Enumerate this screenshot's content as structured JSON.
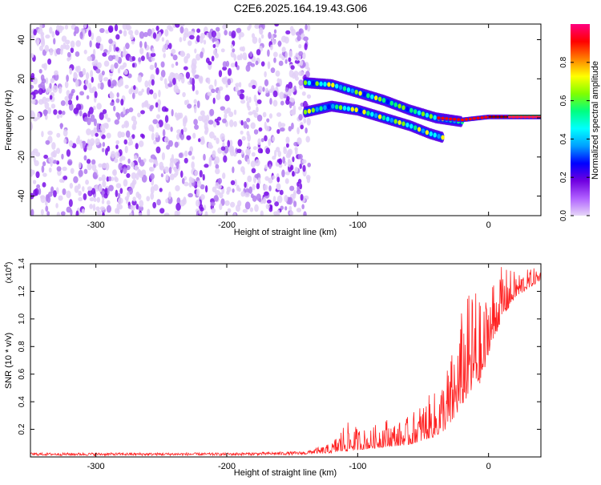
{
  "title": "C2E6.2025.164.19.43.G06",
  "chart_data": [
    {
      "type": "heatmap",
      "xlabel": "Height of straight line (km)",
      "ylabel": "Frequency (Hz)",
      "xlim": [
        -350,
        40
      ],
      "ylim": [
        -50,
        48
      ],
      "xticks": [
        -300,
        -200,
        -100,
        0
      ],
      "yticks": [
        -40,
        -20,
        0,
        20,
        40
      ],
      "colorbar": {
        "label": "Normalized spectral amplitude",
        "range": [
          0,
          1
        ],
        "ticks": [
          "0.0",
          "0.2",
          "0.4",
          "0.6",
          "0.8"
        ],
        "colors": [
          "#e6d6f8",
          "#b060ff",
          "#7000e0",
          "#0000ff",
          "#00a0ff",
          "#00ffff",
          "#00ff80",
          "#80ff00",
          "#ffff00",
          "#ff8000",
          "#ff0000",
          "#ff0080"
        ]
      },
      "features": [
        {
          "name": "noise field",
          "x_range": [
            -350,
            -137
          ],
          "f_range": [
            -50,
            48
          ],
          "amplitude": 0.1
        },
        {
          "name": "upper branch",
          "points": [
            [
              -140,
              18
            ],
            [
              -120,
              17
            ],
            [
              -100,
              13
            ],
            [
              -80,
              9
            ],
            [
              -60,
              4
            ],
            [
              -40,
              0
            ],
            [
              -20,
              -2
            ]
          ],
          "amplitude": 0.6
        },
        {
          "name": "lower branch",
          "points": [
            [
              -140,
              3
            ],
            [
              -120,
              6
            ],
            [
              -100,
              4
            ],
            [
              -80,
              0
            ],
            [
              -60,
              -4
            ],
            [
              -45,
              -8
            ],
            [
              -35,
              -10
            ]
          ],
          "amplitude": 0.6
        },
        {
          "name": "direct tone",
          "points": [
            [
              -38,
              0
            ],
            [
              -20,
              -1
            ],
            [
              0,
              0.5
            ],
            [
              20,
              0.5
            ],
            [
              40,
              0.5
            ]
          ],
          "amplitude": 0.95
        }
      ]
    },
    {
      "type": "line",
      "xlabel": "Height of straight line (km)",
      "ylabel": "SNR (10 * v/v)",
      "exponent": "(x10",
      "exponent_power": "4",
      "exponent_close": ")",
      "xlim": [
        -350,
        40
      ],
      "ylim": [
        0,
        1.4
      ],
      "xticks": [
        -300,
        -200,
        -100,
        0
      ],
      "yticks": [
        "0.2",
        "0.4",
        "0.6",
        "0.8",
        "1.0",
        "1.2",
        "1.4"
      ],
      "color": "#ff2020",
      "envelope": {
        "x": [
          -350,
          -200,
          -140,
          -120,
          -110,
          -100,
          -90,
          -80,
          -70,
          -60,
          -50,
          -40,
          -30,
          -25,
          -20,
          -15,
          -10,
          -5,
          0,
          10,
          20,
          30,
          40
        ],
        "baseline": [
          0.01,
          0.01,
          0.015,
          0.03,
          0.04,
          0.05,
          0.06,
          0.07,
          0.08,
          0.09,
          0.12,
          0.15,
          0.22,
          0.3,
          0.38,
          0.45,
          0.5,
          0.55,
          0.75,
          1.0,
          1.15,
          1.22,
          1.28
        ],
        "peak": [
          0.03,
          0.03,
          0.04,
          0.1,
          0.26,
          0.22,
          0.2,
          0.3,
          0.25,
          0.3,
          0.42,
          0.48,
          0.72,
          0.85,
          1.1,
          1.2,
          1.3,
          1.05,
          1.3,
          1.38,
          1.35,
          1.36,
          1.38
        ]
      }
    }
  ]
}
